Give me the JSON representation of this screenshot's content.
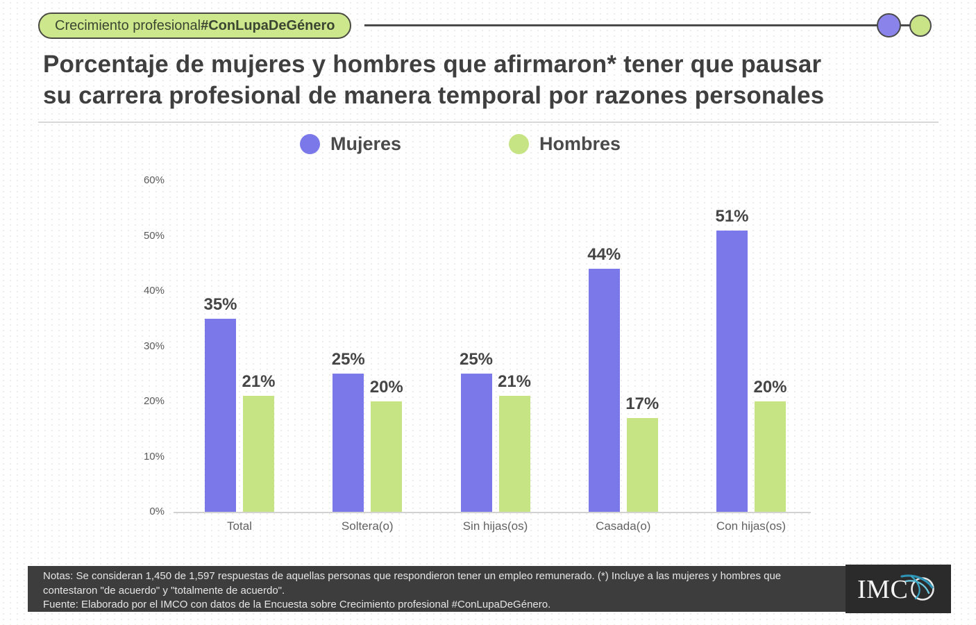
{
  "banner": {
    "badge_regular": "Crecimiento profesional ",
    "badge_bold": "#ConLupaDeGénero"
  },
  "title": {
    "line1": "Porcentaje de mujeres y hombres que afirmaron* tener que pausar",
    "line2": "su carrera profesional de manera temporal por razones personales"
  },
  "chart_data": {
    "type": "bar",
    "title": "Porcentaje de mujeres y hombres que afirmaron* tener que pausar su carrera profesional de manera temporal por razones personales",
    "categories": [
      "Total",
      "Soltera(o)",
      "Sin hijas(os)",
      "Casada(o)",
      "Con hijas(os)"
    ],
    "series": [
      {
        "name": "Mujeres",
        "color": "#7b78e9",
        "values": [
          35,
          25,
          25,
          44,
          51
        ]
      },
      {
        "name": "Hombres",
        "color": "#c6e483",
        "values": [
          21,
          20,
          21,
          17,
          20
        ]
      }
    ],
    "value_suffix": "%",
    "xlabel": "",
    "ylabel": "",
    "ylim": [
      0,
      60
    ],
    "y_tick_step": 10,
    "y_ticks": [
      "0%",
      "10%",
      "20%",
      "30%",
      "40%",
      "50%",
      "60%"
    ],
    "grid": false,
    "legend_position": "top"
  },
  "footer": {
    "line1": "Notas: Se consideran 1,450 de 1,597 respuestas de aquellas personas que respondieron tener un empleo remunerado. (*) Incluye a las mujeres y hombres que",
    "line2": "contestaron \"de acuerdo\" y \"totalmente de acuerdo\".",
    "line3": "Fuente: Elaborado por el IMCO con datos de la Encuesta sobre Crecimiento profesional #ConLupaDeGénero.",
    "logo_text": "IMC"
  },
  "colors": {
    "mujeres": "#7b78e9",
    "hombres": "#c6e483",
    "badge_bg": "#cde88c",
    "banner_purple_circle": "#8a83ea",
    "banner_green_circle": "#c9e387",
    "footer_bg": "#3d3d3d",
    "logo_block_bg": "#2b2b2b",
    "logo_teal": "#2e93b5",
    "title_text": "#3f3f3f"
  }
}
